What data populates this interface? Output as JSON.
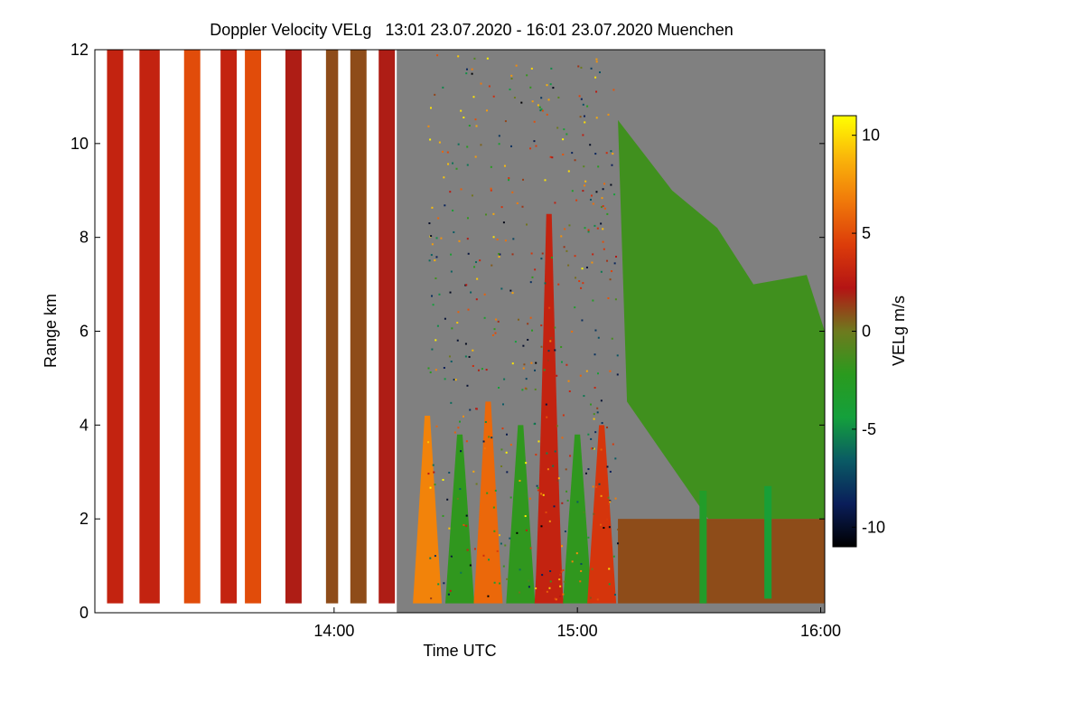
{
  "chart_data": {
    "type": "heatmap",
    "title": "Doppler Velocity VELg   13:01 23.07.2020 - 16:01 23.07.2020 Muenchen",
    "xlabel": "Time UTC",
    "ylabel": "Range km",
    "colorbar_label": "VELg m/s",
    "xlim": [
      "13:01",
      "16:01"
    ],
    "ylim": [
      0,
      12
    ],
    "clim": [
      -11,
      11
    ],
    "x_ticks": [
      {
        "label": "14:00",
        "minutes": 59
      },
      {
        "label": "15:00",
        "minutes": 119
      },
      {
        "label": "16:00",
        "minutes": 179
      }
    ],
    "y_ticks": [
      {
        "label": "0",
        "value": 0
      },
      {
        "label": "2",
        "value": 2
      },
      {
        "label": "4",
        "value": 4
      },
      {
        "label": "6",
        "value": 6
      },
      {
        "label": "8",
        "value": 8
      },
      {
        "label": "10",
        "value": 10
      },
      {
        "label": "12",
        "value": 12
      }
    ],
    "colorbar_ticks": [
      {
        "label": "10",
        "value": 10
      },
      {
        "label": "5",
        "value": 5
      },
      {
        "label": "0",
        "value": 0
      },
      {
        "label": "-5",
        "value": -5
      },
      {
        "label": "-10",
        "value": -10
      }
    ],
    "colormap": [
      "#000000",
      "#0a1e5a",
      "#0a5a64",
      "#14a03c",
      "#2a9a1e",
      "#6e7a1e",
      "#b41414",
      "#dc3c0a",
      "#f0780a",
      "#fab40a",
      "#ffff00"
    ],
    "no_signal_color": "#808080",
    "intermittent_scan_segments": [
      {
        "start": "13:04",
        "end": "13:08",
        "velocity": 3
      },
      {
        "start": "13:12",
        "end": "13:17",
        "velocity": 3
      },
      {
        "start": "13:23",
        "end": "13:27",
        "velocity": 5
      },
      {
        "start": "13:32",
        "end": "13:36",
        "velocity": 3
      },
      {
        "start": "13:38",
        "end": "13:42",
        "velocity": 5
      },
      {
        "start": "13:48",
        "end": "13:52",
        "velocity": 2
      },
      {
        "start": "13:58",
        "end": "14:01",
        "velocity": 1
      },
      {
        "start": "14:04",
        "end": "14:08",
        "velocity": 1
      },
      {
        "start": "14:11",
        "end": "14:15",
        "velocity": 2
      }
    ],
    "convective_plumes": [
      {
        "time": "14:23",
        "top_km": 4.2,
        "velocity": 7
      },
      {
        "time": "14:31",
        "top_km": 3.8,
        "velocity": -2
      },
      {
        "time": "14:38",
        "top_km": 4.5,
        "velocity": 6
      },
      {
        "time": "14:46",
        "top_km": 4.0,
        "velocity": -2
      },
      {
        "time": "14:53",
        "top_km": 8.5,
        "velocity": 3
      },
      {
        "time": "15:00",
        "top_km": 3.8,
        "velocity": -2
      },
      {
        "time": "15:06",
        "top_km": 4.0,
        "velocity": 4
      }
    ],
    "stratiform_cloud_region": {
      "start": "15:10",
      "end": "16:01",
      "base_km": 2.0,
      "top_km": 10.5,
      "velocity": -1.5
    },
    "fall_streaks": [
      {
        "time": "15:31",
        "base_km": 0.2,
        "top_km": 2.6,
        "velocity": -3
      },
      {
        "time": "15:47",
        "base_km": 0.3,
        "top_km": 2.7,
        "velocity": -4
      }
    ]
  }
}
